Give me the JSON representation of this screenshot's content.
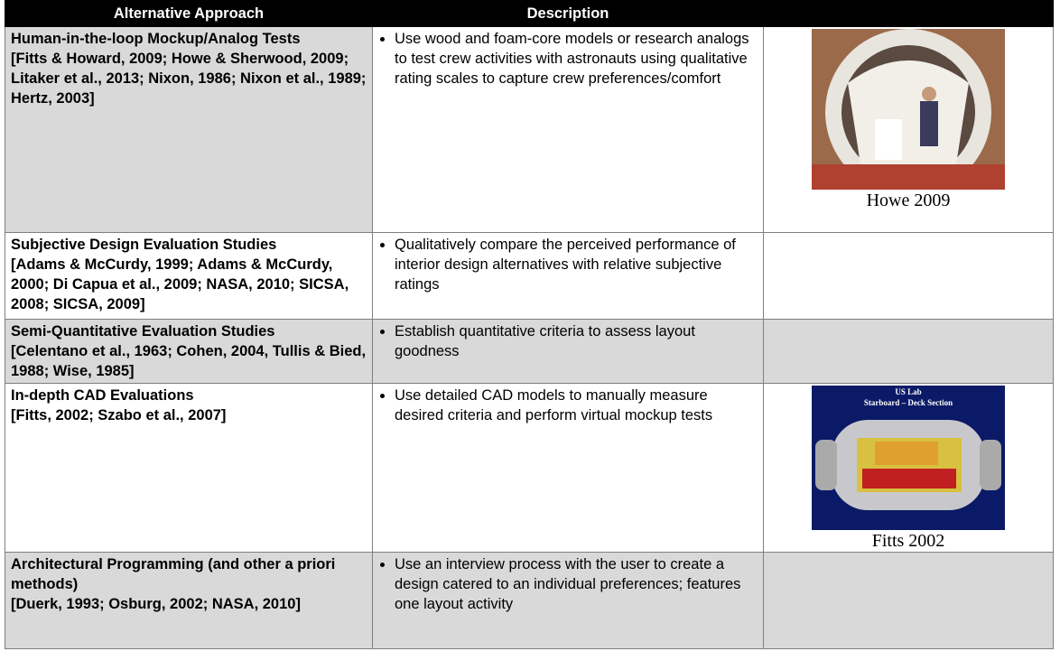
{
  "table": {
    "header": [
      "Alternative Approach",
      "Description"
    ],
    "rows": [
      {
        "approach": "Human-in-the-loop Mockup/Analog Tests",
        "references": "[Fitts & Howard, 2009; Howe & Sherwood, 2009; Litaker et al., 2013; Nixon, 1986; Nixon et al., 1989; Hertz, 2003]",
        "description": "Use wood and foam-core models or research analogs to test crew activities with astronauts using qualitative rating scales to capture crew preferences/comfort",
        "figure": {
          "caption": "Howe 2009"
        }
      },
      {
        "approach": "Subjective Design Evaluation Studies",
        "references": "[Adams & McCurdy, 1999; Adams & McCurdy, 2000; Di Capua et al., 2009; NASA, 2010; SICSA, 2008; SICSA, 2009]",
        "description": "Qualitatively compare the perceived performance of interior design alternatives with relative subjective ratings"
      },
      {
        "approach": "Semi-Quantitative Evaluation Studies",
        "references": "[Celentano et al., 1963; Cohen, 2004, Tullis & Bied, 1988; Wise, 1985]",
        "description": "Establish quantitative criteria to assess layout goodness"
      },
      {
        "approach": "In-depth CAD Evaluations",
        "references": "[Fitts, 2002; Szabo et al., 2007]",
        "description": "Use detailed CAD models to manually measure desired criteria and perform virtual mockup tests",
        "figure": {
          "caption": "Fitts 2002",
          "labels": [
            "US Lab",
            "Starboard – Deck Section"
          ]
        }
      },
      {
        "approach": "Architectural Programming (and other a priori methods)",
        "references": "[Duerk, 1993; Osburg, 2002; NASA, 2010]",
        "description": "Use an interview process with the user to create a design catered to an individual preferences; features one layout activity"
      }
    ]
  }
}
